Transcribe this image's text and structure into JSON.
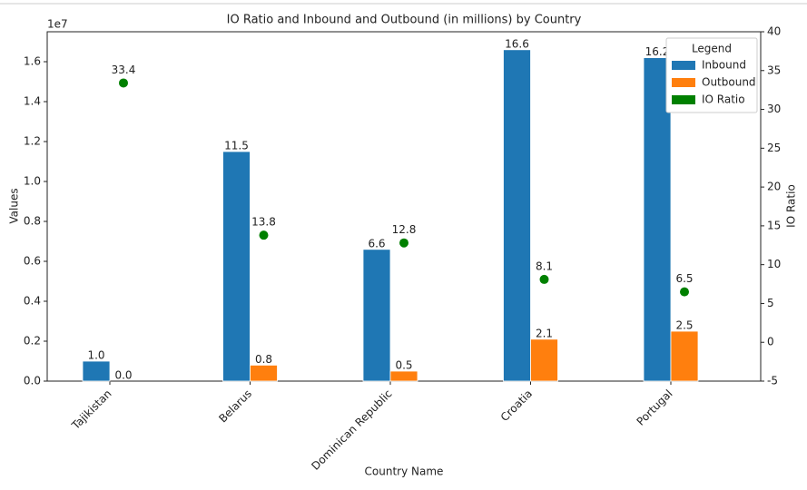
{
  "chart_data": {
    "type": "bar",
    "title": "IO Ratio and Inbound and Outbound (in millions) by Country",
    "x_label": "Country Name",
    "y_label": "Values",
    "y2_label": "IO Ratio",
    "y_offset_label": "1e7",
    "legend_title": "Legend",
    "legend": "upper right",
    "categories": [
      "Tajikistan",
      "Belarus",
      "Dominican Republic",
      "Croatia",
      "Portugal"
    ],
    "series": [
      {
        "name": "Inbound",
        "color": "#1f77b4",
        "values": [
          1000000,
          11500000,
          6600000,
          16600000,
          16200000
        ],
        "value_labels": [
          "1.0",
          "11.5",
          "6.6",
          "16.6",
          "16.2"
        ]
      },
      {
        "name": "Outbound",
        "color": "#ff7f0e",
        "values": [
          0,
          800000,
          500000,
          2100000,
          2500000
        ],
        "value_labels": [
          "0.0",
          "0.8",
          "0.5",
          "2.1",
          "2.5"
        ]
      },
      {
        "name": "IO Ratio",
        "color": "#008000",
        "type": "scatter",
        "axis": "y2",
        "values": [
          33.4,
          13.8,
          12.8,
          8.1,
          6.5
        ]
      }
    ],
    "ylim": [
      0,
      17500000
    ],
    "yticks": [
      {
        "value": 0,
        "label": "0.0"
      },
      {
        "value": 2000000,
        "label": "0.2"
      },
      {
        "value": 4000000,
        "label": "0.4"
      },
      {
        "value": 6000000,
        "label": "0.6"
      },
      {
        "value": 8000000,
        "label": "0.8"
      },
      {
        "value": 10000000,
        "label": "1.0"
      },
      {
        "value": 12000000,
        "label": "1.2"
      },
      {
        "value": 14000000,
        "label": "1.4"
      },
      {
        "value": 16000000,
        "label": "1.6"
      }
    ],
    "y2lim": [
      -5,
      40
    ],
    "y2ticks": [
      -5,
      0,
      5,
      10,
      15,
      20,
      25,
      30,
      35,
      40
    ]
  }
}
